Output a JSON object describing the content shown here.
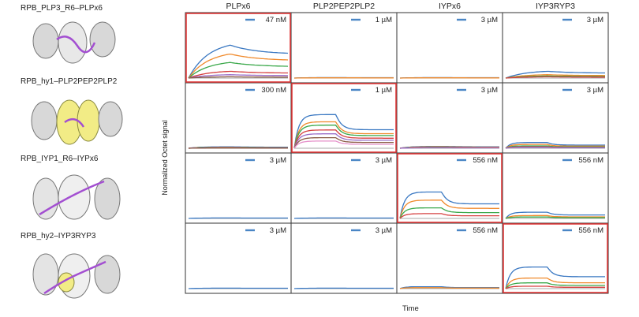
{
  "structures": [
    {
      "label": "RPB_PLP3_R6–PLPx6"
    },
    {
      "label": "RPB_hy1–PLP2PEP2PLP2"
    },
    {
      "label": "RPB_IYP1_R6–IYPx6"
    },
    {
      "label": "RPB_hy2–IYP3RYP3"
    }
  ],
  "columns": [
    "PLPx6",
    "PLP2PEP2PLP2",
    "IYPx6",
    "IYP3RYP3"
  ],
  "axis": {
    "ylabel": "Normalized Octet signal",
    "xlabel": "Time"
  },
  "legend_color": "#4a86c5",
  "highlight_color": "#e23a3a",
  "chart_data": {
    "type": "line",
    "grid_rows": 4,
    "grid_cols": 4,
    "series_colors": [
      "#3a78c2",
      "#f08a2c",
      "#3aa84a",
      "#d64040",
      "#9a6cc8",
      "#8a5a44",
      "#e58fc9"
    ],
    "panels": [
      {
        "row": 0,
        "col": 0,
        "conc": "47 nM",
        "highlight": true,
        "amps": [
          0.78,
          0.57,
          0.37,
          0.16,
          0.08,
          0.03
        ],
        "shape": "slow"
      },
      {
        "row": 0,
        "col": 1,
        "conc": "1 µM",
        "highlight": false,
        "amps": [
          0.01,
          0.005
        ],
        "shape": "flat"
      },
      {
        "row": 0,
        "col": 2,
        "conc": "3 µM",
        "highlight": false,
        "amps": [
          0.01,
          0.005
        ],
        "shape": "flat"
      },
      {
        "row": 0,
        "col": 3,
        "conc": "3 µM",
        "highlight": false,
        "amps": [
          0.16,
          0.08,
          0.05,
          0.03
        ],
        "shape": "slow"
      },
      {
        "row": 1,
        "col": 0,
        "conc": "300 nM",
        "highlight": false,
        "amps": [
          0.03,
          0.02,
          0.015,
          0.01,
          0.01,
          0.005
        ],
        "shape": "flat"
      },
      {
        "row": 1,
        "col": 1,
        "conc": "1 µM",
        "highlight": true,
        "amps": [
          0.7,
          0.55,
          0.48,
          0.38,
          0.3,
          0.22,
          0.15
        ],
        "shape": "fast"
      },
      {
        "row": 1,
        "col": 2,
        "conc": "3 µM",
        "highlight": false,
        "amps": [
          0.04,
          0.03,
          0.02,
          0.015,
          0.01
        ],
        "shape": "flat"
      },
      {
        "row": 1,
        "col": 3,
        "conc": "3 µM",
        "highlight": false,
        "amps": [
          0.12,
          0.08,
          0.05,
          0.03,
          0.02
        ],
        "shape": "fast"
      },
      {
        "row": 2,
        "col": 0,
        "conc": "3 µM",
        "highlight": false,
        "amps": [
          0.01
        ],
        "shape": "flat"
      },
      {
        "row": 2,
        "col": 1,
        "conc": "3 µM",
        "highlight": false,
        "amps": [
          0.01
        ],
        "shape": "flat"
      },
      {
        "row": 2,
        "col": 2,
        "conc": "556 nM",
        "highlight": true,
        "amps": [
          0.55,
          0.38,
          0.22,
          0.1
        ],
        "shape": "fast"
      },
      {
        "row": 2,
        "col": 3,
        "conc": "556 nM",
        "highlight": false,
        "amps": [
          0.13,
          0.06,
          0.03
        ],
        "shape": "fast"
      },
      {
        "row": 3,
        "col": 0,
        "conc": "3 µM",
        "highlight": false,
        "amps": [
          0.01
        ],
        "shape": "flat"
      },
      {
        "row": 3,
        "col": 1,
        "conc": "3 µM",
        "highlight": false,
        "amps": [
          0.01
        ],
        "shape": "flat"
      },
      {
        "row": 3,
        "col": 2,
        "conc": "556 nM",
        "highlight": false,
        "amps": [
          0.04,
          0.02
        ],
        "shape": "fast"
      },
      {
        "row": 3,
        "col": 3,
        "conc": "556 nM",
        "highlight": true,
        "amps": [
          0.45,
          0.22,
          0.12,
          0.05
        ],
        "shape": "fast"
      }
    ]
  }
}
